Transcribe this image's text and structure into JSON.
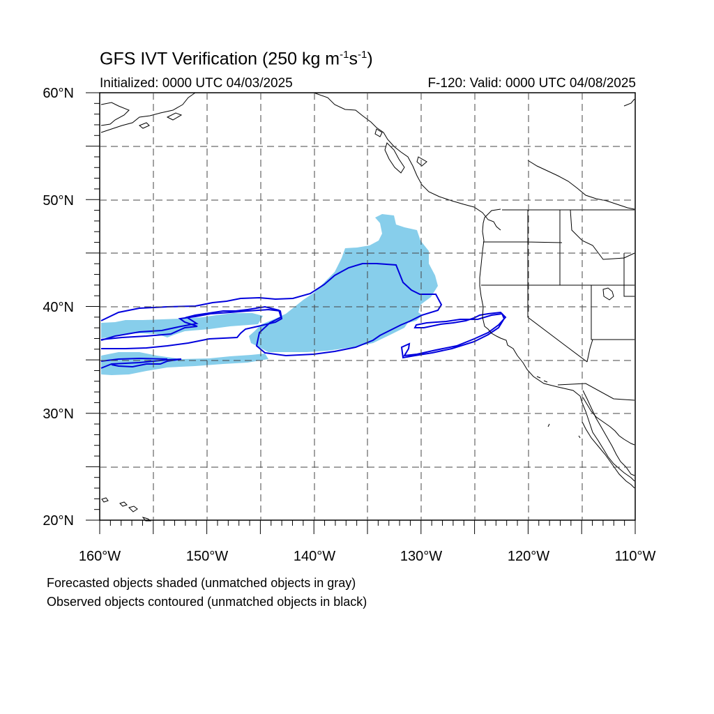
{
  "title": {
    "main": "GFS IVT Verification (250 kg m",
    "exp1": "-1",
    "mid": "s",
    "exp2": "-1",
    "end": ")"
  },
  "subtitle_left": "Initialized: 0000 UTC 04/03/2025",
  "subtitle_right": "F-120: Valid: 0000 UTC 04/08/2025",
  "lat_labels": [
    "60°N",
    "50°N",
    "40°N",
    "30°N",
    "20°N"
  ],
  "lon_labels": [
    "160°W",
    "150°W",
    "140°W",
    "130°W",
    "120°W",
    "110°W"
  ],
  "captions": [
    "Forecasted objects shaded (unmatched objects in gray)",
    "Observed objects contoured (unmatched objects in black)"
  ],
  "colors": {
    "forecast_fill": "#87CEEB",
    "observed_contour": "#0000DD",
    "coastline": "#000000",
    "grid": "#444444"
  },
  "map": {
    "projection": "cylindrical-equidistant",
    "lon_range": [
      -160,
      -110
    ],
    "lat_range": [
      20,
      60
    ]
  }
}
